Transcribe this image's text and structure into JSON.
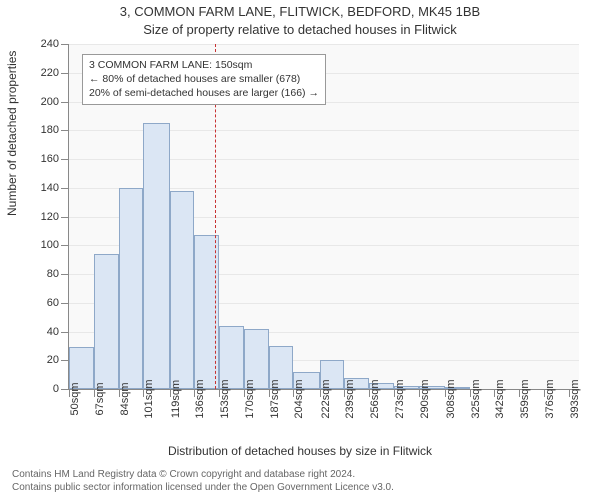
{
  "chart": {
    "type": "histogram",
    "title_line1": "3, COMMON FARM LANE, FLITWICK, BEDFORD, MK45 1BB",
    "title_line2": "Size of property relative to detached houses in Flitwick",
    "y_label": "Number of detached properties",
    "x_label": "Distribution of detached houses by size in Flitwick",
    "background_color": "#f9f9f9",
    "grid_color": "#e8e8e8",
    "axis_color": "#888888",
    "bar_fill": "#dbe6f4",
    "bar_stroke": "#8ea8c8",
    "ref_line_color": "#c83232",
    "ref_line_x_value": 150,
    "x_min": 50,
    "x_max": 400,
    "y_min": 0,
    "y_max": 240,
    "y_tick_step": 20,
    "x_ticks": [
      50,
      67,
      84,
      101,
      119,
      136,
      153,
      170,
      187,
      204,
      222,
      239,
      256,
      273,
      290,
      308,
      325,
      342,
      359,
      376,
      393
    ],
    "x_tick_unit": "sqm",
    "bars": [
      {
        "x_start": 50,
        "x_end": 67,
        "value": 29
      },
      {
        "x_start": 67,
        "x_end": 84,
        "value": 94
      },
      {
        "x_start": 84,
        "x_end": 101,
        "value": 140
      },
      {
        "x_start": 101,
        "x_end": 119,
        "value": 185
      },
      {
        "x_start": 119,
        "x_end": 136,
        "value": 138
      },
      {
        "x_start": 136,
        "x_end": 153,
        "value": 107
      },
      {
        "x_start": 153,
        "x_end": 170,
        "value": 44
      },
      {
        "x_start": 170,
        "x_end": 187,
        "value": 42
      },
      {
        "x_start": 187,
        "x_end": 204,
        "value": 30
      },
      {
        "x_start": 204,
        "x_end": 222,
        "value": 12
      },
      {
        "x_start": 222,
        "x_end": 239,
        "value": 20
      },
      {
        "x_start": 239,
        "x_end": 256,
        "value": 8
      },
      {
        "x_start": 256,
        "x_end": 273,
        "value": 4
      },
      {
        "x_start": 273,
        "x_end": 290,
        "value": 2
      },
      {
        "x_start": 290,
        "x_end": 308,
        "value": 2
      },
      {
        "x_start": 308,
        "x_end": 325,
        "value": 1
      },
      {
        "x_start": 325,
        "x_end": 342,
        "value": 0
      },
      {
        "x_start": 342,
        "x_end": 359,
        "value": 0
      },
      {
        "x_start": 359,
        "x_end": 376,
        "value": 0
      },
      {
        "x_start": 376,
        "x_end": 393,
        "value": 0
      }
    ],
    "annotation": {
      "line1": "3 COMMON FARM LANE: 150sqm",
      "line2": "← 80% of detached houses are smaller (678)",
      "line3": "20% of semi-detached houses are larger (166) →"
    },
    "footer_line1": "Contains HM Land Registry data © Crown copyright and database right 2024.",
    "footer_line2": "Contains public sector information licensed under the Open Government Licence v3.0."
  }
}
